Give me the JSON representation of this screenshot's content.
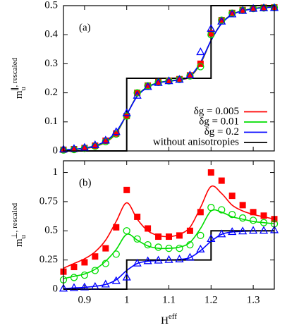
{
  "chart_data": [
    {
      "type": "line",
      "panel_label": "(a)",
      "ylabel": {
        "text": "m",
        "sub": "u",
        "sup": "∥, rescaled"
      },
      "xlim": [
        0.85,
        1.35
      ],
      "ylim": [
        0,
        0.5
      ],
      "yticks": [
        0,
        0.1,
        0.2,
        0.3,
        0.4,
        0.5
      ],
      "legend": "lower right",
      "x": [
        0.85,
        0.875,
        0.9,
        0.925,
        0.95,
        0.975,
        1.0,
        1.025,
        1.05,
        1.075,
        1.1,
        1.125,
        1.15,
        1.175,
        1.2,
        1.225,
        1.25,
        1.275,
        1.3,
        1.325,
        1.35
      ],
      "series": [
        {
          "name": "δg = 0.005",
          "color": "#ff0000",
          "marker": "square",
          "values": [
            0.003,
            0.005,
            0.008,
            0.015,
            0.03,
            0.06,
            0.125,
            0.19,
            0.22,
            0.235,
            0.24,
            0.245,
            0.255,
            0.3,
            0.38,
            0.44,
            0.47,
            0.483,
            0.49,
            0.494,
            0.496
          ],
          "marker_values": [
            0.004,
            0.006,
            0.01,
            0.018,
            0.035,
            0.06,
            0.12,
            0.2,
            0.225,
            0.237,
            0.242,
            0.247,
            0.26,
            0.3,
            0.405,
            0.45,
            0.475,
            0.485,
            0.49,
            0.493,
            0.494
          ]
        },
        {
          "name": "δg = 0.01",
          "color": "#00dd00",
          "marker": "circle",
          "values": [
            0.003,
            0.005,
            0.009,
            0.016,
            0.031,
            0.062,
            0.125,
            0.19,
            0.221,
            0.235,
            0.241,
            0.246,
            0.256,
            0.302,
            0.38,
            0.44,
            0.47,
            0.483,
            0.49,
            0.494,
            0.496
          ],
          "marker_values": [
            0.003,
            0.005,
            0.009,
            0.016,
            0.032,
            0.058,
            0.12,
            0.2,
            0.224,
            0.236,
            0.241,
            0.246,
            0.258,
            0.29,
            0.4,
            0.45,
            0.474,
            0.484,
            0.49,
            0.492,
            0.493
          ]
        },
        {
          "name": "δg = 0.2",
          "color": "#0000ff",
          "marker": "triangle",
          "values": [
            0.004,
            0.006,
            0.01,
            0.018,
            0.034,
            0.066,
            0.125,
            0.188,
            0.219,
            0.234,
            0.24,
            0.245,
            0.257,
            0.305,
            0.38,
            0.438,
            0.469,
            0.482,
            0.489,
            0.493,
            0.495
          ],
          "marker_values": [
            0.005,
            0.007,
            0.011,
            0.02,
            0.036,
            0.065,
            0.13,
            0.19,
            0.22,
            0.234,
            0.24,
            0.245,
            0.26,
            0.34,
            0.42,
            0.445,
            0.47,
            0.482,
            0.489,
            0.491,
            0.492
          ]
        },
        {
          "name": "without anisotropies",
          "color": "#000000",
          "step": true,
          "x": [
            0.85,
            1.0,
            1.0,
            1.2,
            1.2,
            1.35
          ],
          "values": [
            0,
            0,
            0.25,
            0.25,
            0.5,
            0.5
          ]
        }
      ]
    },
    {
      "type": "line",
      "panel_label": "(b)",
      "ylabel": {
        "text": "m",
        "sub": "u",
        "sup": "⊥, rescaled"
      },
      "xlabel": {
        "text": "H",
        "sup": "eff"
      },
      "xlim": [
        0.85,
        1.35
      ],
      "xticks": [
        0.9,
        1,
        1.1,
        1.2,
        1.3
      ],
      "ylim": [
        0,
        1.1
      ],
      "yticks": [
        0,
        0.25,
        0.5,
        0.75,
        1
      ],
      "x": [
        0.85,
        0.875,
        0.9,
        0.925,
        0.95,
        0.975,
        1.0,
        1.025,
        1.05,
        1.075,
        1.1,
        1.125,
        1.15,
        1.175,
        1.2,
        1.225,
        1.25,
        1.275,
        1.3,
        1.325,
        1.35
      ],
      "series": [
        {
          "color": "#ff0000",
          "marker": "square",
          "values": [
            0.18,
            0.22,
            0.26,
            0.32,
            0.42,
            0.58,
            0.74,
            0.6,
            0.5,
            0.46,
            0.45,
            0.47,
            0.53,
            0.7,
            0.88,
            0.82,
            0.72,
            0.67,
            0.64,
            0.62,
            0.6
          ],
          "marker_values": [
            0.15,
            0.19,
            0.23,
            0.28,
            0.35,
            0.53,
            0.85,
            0.62,
            0.52,
            0.45,
            0.45,
            0.46,
            0.5,
            0.66,
            1.0,
            0.93,
            0.8,
            0.72,
            0.66,
            0.63,
            0.6
          ]
        },
        {
          "color": "#00dd00",
          "marker": "circle",
          "values": [
            0.09,
            0.11,
            0.13,
            0.17,
            0.24,
            0.34,
            0.47,
            0.42,
            0.37,
            0.35,
            0.35,
            0.36,
            0.4,
            0.52,
            0.67,
            0.66,
            0.62,
            0.6,
            0.58,
            0.57,
            0.56
          ],
          "marker_values": [
            0.08,
            0.1,
            0.12,
            0.16,
            0.22,
            0.3,
            0.5,
            0.43,
            0.38,
            0.36,
            0.35,
            0.35,
            0.38,
            0.46,
            0.7,
            0.68,
            0.64,
            0.61,
            0.59,
            0.57,
            0.56
          ]
        },
        {
          "color": "#0000ff",
          "marker": "triangle",
          "values": [
            0.005,
            0.01,
            0.015,
            0.025,
            0.04,
            0.08,
            0.16,
            0.22,
            0.24,
            0.245,
            0.25,
            0.255,
            0.27,
            0.33,
            0.41,
            0.47,
            0.49,
            0.495,
            0.5,
            0.5,
            0.5
          ],
          "marker_values": [
            0.005,
            0.01,
            0.015,
            0.02,
            0.04,
            0.07,
            0.1,
            0.22,
            0.24,
            0.245,
            0.25,
            0.255,
            0.27,
            0.34,
            0.43,
            0.47,
            0.49,
            0.495,
            0.5,
            0.5,
            0.505
          ]
        },
        {
          "color": "#000000",
          "step": true,
          "x": [
            0.85,
            1.0,
            1.0,
            1.2,
            1.2,
            1.35
          ],
          "values": [
            0,
            0,
            0.25,
            0.25,
            0.5,
            0.5
          ]
        }
      ]
    }
  ]
}
